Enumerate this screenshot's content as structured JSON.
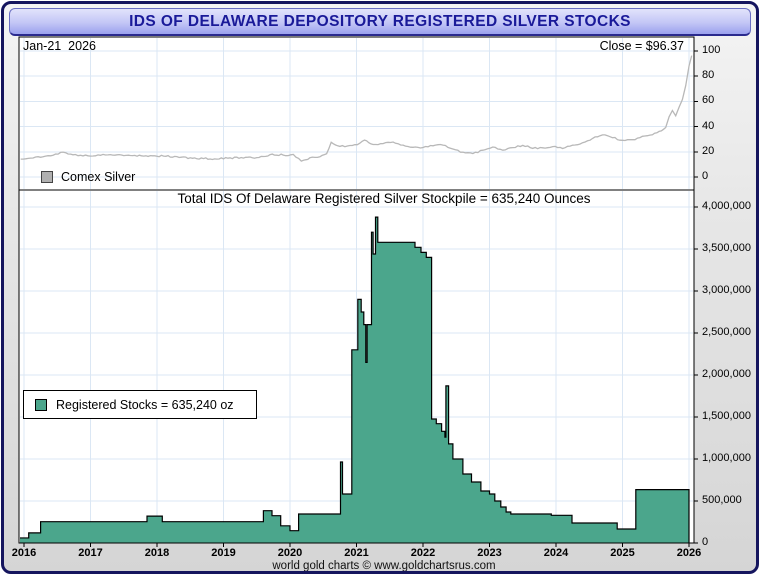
{
  "header": {
    "title": "IDS OF DELAWARE DEPOSITORY REGISTERED SILVER STOCKS"
  },
  "top_panel": {
    "date_label": "Jan-21  2026",
    "close_label": "Close = $96.37",
    "legend_label": "Comex Silver"
  },
  "bottom_panel": {
    "title": "Total IDS Of Delaware Registered Silver Stockpile = 635,240 Ounces",
    "legend_label": "Registered Stocks = 635,240 oz"
  },
  "footer": {
    "credit": "world gold charts © www.goldchartsrus.com"
  },
  "colors": {
    "silver_line": "#b8b8b8",
    "silver_marker": "#b0b0b0",
    "stocks_fill": "#4BA68C",
    "grid": "#dbe7f4",
    "header_text": "#1a1a99"
  },
  "chart_data": [
    {
      "type": "line",
      "title": "Comex Silver",
      "ylabel": "",
      "xlabel": "",
      "ylim": [
        0,
        108
      ],
      "xlim": [
        2015.93,
        2026.08
      ],
      "grid": true,
      "legend_position": "bottom-left",
      "yticks": [
        0,
        20,
        40,
        60,
        80,
        100
      ],
      "ytick_labels": [
        "0",
        "20",
        "40",
        "60",
        "80",
        "100"
      ],
      "annotations": [
        "Jan-21  2026",
        "Close = $96.37"
      ],
      "series": [
        {
          "name": "Comex Silver",
          "x": [
            2015.95,
            2016.1,
            2016.25,
            2016.4,
            2016.55,
            2016.7,
            2016.85,
            2017.0,
            2017.15,
            2017.3,
            2017.5,
            2017.7,
            2017.9,
            2018.1,
            2018.3,
            2018.5,
            2018.7,
            2018.9,
            2019.1,
            2019.3,
            2019.5,
            2019.7,
            2019.9,
            2020.05,
            2020.17,
            2020.3,
            2020.45,
            2020.55,
            2020.62,
            2020.75,
            2020.9,
            2021.05,
            2021.12,
            2021.25,
            2021.4,
            2021.55,
            2021.7,
            2021.85,
            2022.0,
            2022.15,
            2022.3,
            2022.45,
            2022.6,
            2022.75,
            2022.9,
            2023.05,
            2023.2,
            2023.35,
            2023.5,
            2023.65,
            2023.8,
            2023.95,
            2024.1,
            2024.25,
            2024.4,
            2024.55,
            2024.7,
            2024.85,
            2025.0,
            2025.15,
            2025.3,
            2025.45,
            2025.55,
            2025.65,
            2025.7,
            2025.75,
            2025.8,
            2025.85,
            2025.9,
            2025.95,
            2026.0,
            2026.04
          ],
          "y": [
            14.2,
            15.0,
            15.6,
            16.8,
            19.5,
            18.2,
            17.2,
            16.6,
            17.2,
            17.8,
            17.0,
            16.5,
            17.0,
            16.6,
            16.2,
            15.2,
            14.6,
            14.2,
            15.2,
            15.0,
            15.4,
            17.8,
            17.4,
            17.9,
            12.6,
            15.3,
            16.0,
            18.5,
            27.5,
            24.3,
            25.0,
            26.8,
            29.3,
            25.8,
            26.5,
            27.8,
            25.3,
            23.6,
            23.4,
            24.8,
            25.3,
            22.2,
            19.8,
            18.6,
            21.3,
            23.8,
            21.3,
            23.3,
            25.1,
            22.7,
            23.2,
            24.1,
            22.6,
            25.2,
            27.2,
            30.6,
            33.4,
            31.2,
            29.1,
            29.6,
            32.3,
            33.5,
            36.2,
            39.3,
            47.8,
            52.8,
            48.6,
            55.2,
            61.5,
            72.5,
            88.0,
            96.37
          ]
        }
      ],
      "close_value": 96.37
    },
    {
      "type": "area",
      "title": "Total IDS Of Delaware Registered Silver Stockpile = 635,240 Ounces",
      "ylabel": "",
      "xlabel": "",
      "ylim": [
        0,
        4200000
      ],
      "xlim": [
        2015.93,
        2026.08
      ],
      "grid": true,
      "legend_position": "middle-left",
      "yticks": [
        0,
        500000,
        1000000,
        1500000,
        2000000,
        2500000,
        3000000,
        3500000,
        4000000
      ],
      "ytick_labels": [
        "0",
        "500,000",
        "1,000,000",
        "1,500,000",
        "2,000,000",
        "2,500,000",
        "3,000,000",
        "3,500,000",
        "4,000,000"
      ],
      "series": [
        {
          "name": "Registered Stocks",
          "step": true,
          "x": [
            2015.95,
            2016.07,
            2016.25,
            2017.85,
            2018.08,
            2019.6,
            2019.73,
            2019.86,
            2020.0,
            2020.13,
            2020.76,
            2020.79,
            2020.93,
            2021.02,
            2021.07,
            2021.11,
            2021.14,
            2021.16,
            2021.225,
            2021.25,
            2021.285,
            2021.32,
            2021.88,
            2021.97,
            2022.05,
            2022.13,
            2022.2,
            2022.28,
            2022.33,
            2022.345,
            2022.385,
            2022.45,
            2022.6,
            2022.73,
            2022.87,
            2023.0,
            2023.08,
            2023.17,
            2023.25,
            2023.32,
            2023.93,
            2024.24,
            2024.92,
            2025.2,
            2026.0
          ],
          "y": [
            60000,
            120000,
            253000,
            320000,
            253000,
            385000,
            325000,
            205000,
            146000,
            345000,
            964000,
            583000,
            2300000,
            2900000,
            2750000,
            2600000,
            2150000,
            2600000,
            3700000,
            3440000,
            3880000,
            3580000,
            3520000,
            3460000,
            3400000,
            1476000,
            1420000,
            1330000,
            1260000,
            1870000,
            1180000,
            1000000,
            821000,
            726000,
            619000,
            583000,
            500000,
            429000,
            369000,
            345000,
            330000,
            238000,
            167000,
            635240,
            635240
          ]
        }
      ],
      "final_value": 635240
    }
  ],
  "x_axis": {
    "years": [
      2016,
      2017,
      2018,
      2019,
      2020,
      2021,
      2022,
      2023,
      2024,
      2025,
      2026
    ],
    "year_labels": [
      "2016",
      "2017",
      "2018",
      "2019",
      "2020",
      "2021",
      "2022",
      "2023",
      "2024",
      "2025",
      "2026"
    ]
  }
}
